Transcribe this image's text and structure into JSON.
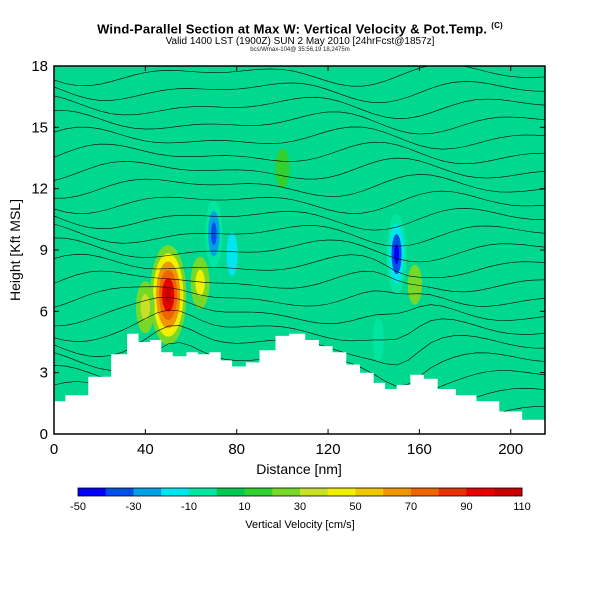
{
  "header": {
    "title": "Wind-Parallel Section at Max W: Vertical Velocity & Pot.Temp.",
    "copyright": "(C)",
    "subtitle": "Valid 1400 LST (1900Z) SUN 2 May 2010 [24hrFcst@1857z]",
    "fineprint": "bcs/Wmax-104@ 35:56,19 18,2475m"
  },
  "chart_data": {
    "type": "heatmap",
    "xlabel": "Distance [nm]",
    "ylabel": "Height [Kft MSL]",
    "xlim": [
      0,
      215
    ],
    "ylim": [
      0,
      18
    ],
    "xticks": [
      "0",
      "40",
      "80",
      "120",
      "160",
      "200"
    ],
    "yticks": [
      "0",
      "3",
      "6",
      "9",
      "12",
      "15",
      "18"
    ],
    "colorbar": {
      "title": "Vertical Velocity [cm/s]",
      "tick_labels": [
        "-50",
        "-30",
        "-10",
        "10",
        "30",
        "50",
        "70",
        "90",
        "110"
      ],
      "colors": [
        "#0000ff",
        "#0050e6",
        "#00a0e6",
        "#00e6f0",
        "#00e6a0",
        "#00c850",
        "#30d030",
        "#78d828",
        "#c8e028",
        "#f0f000",
        "#f0c800",
        "#f09600",
        "#f06400",
        "#e63200",
        "#e60000",
        "#c80000"
      ]
    },
    "terrain": [
      [
        0,
        1.6
      ],
      [
        5,
        1.9
      ],
      [
        15,
        2.8
      ],
      [
        25,
        3.9
      ],
      [
        32,
        4.9
      ],
      [
        37,
        4.5
      ],
      [
        42,
        4.6
      ],
      [
        47,
        4.0
      ],
      [
        52,
        3.8
      ],
      [
        58,
        4.0
      ],
      [
        63,
        3.9
      ],
      [
        68,
        4.0
      ],
      [
        73,
        3.6
      ],
      [
        78,
        3.3
      ],
      [
        84,
        3.5
      ],
      [
        90,
        4.1
      ],
      [
        97,
        4.8
      ],
      [
        103,
        4.9
      ],
      [
        110,
        4.6
      ],
      [
        116,
        4.3
      ],
      [
        122,
        4.0
      ],
      [
        128,
        3.4
      ],
      [
        134,
        3.0
      ],
      [
        140,
        2.5
      ],
      [
        145,
        2.2
      ],
      [
        150,
        2.4
      ],
      [
        156,
        2.9
      ],
      [
        162,
        2.7
      ],
      [
        168,
        2.2
      ],
      [
        176,
        1.9
      ],
      [
        185,
        1.6
      ],
      [
        195,
        1.1
      ],
      [
        205,
        0.7
      ],
      [
        215,
        0.6
      ]
    ],
    "features": [
      {
        "name": "updraft-core",
        "x": 50,
        "y": 6.8,
        "w": 110
      },
      {
        "name": "updraft-secondary",
        "x": 64,
        "y": 7.4,
        "w": 40
      },
      {
        "name": "updraft-side",
        "x": 40,
        "y": 6.2,
        "w": 30
      },
      {
        "name": "downdraft-west",
        "x": 70,
        "y": 9.8,
        "w": -40
      },
      {
        "name": "downdraft-mid",
        "x": 78,
        "y": 8.8,
        "w": -15
      },
      {
        "name": "downdraft-east",
        "x": 150,
        "y": 8.8,
        "w": -45
      },
      {
        "name": "downdraft-lower",
        "x": 142,
        "y": 4.6,
        "w": -10
      },
      {
        "name": "updraft-east",
        "x": 158,
        "y": 7.3,
        "w": 25
      },
      {
        "name": "updraft-upper",
        "x": 100,
        "y": 13.0,
        "w": 12
      }
    ]
  }
}
